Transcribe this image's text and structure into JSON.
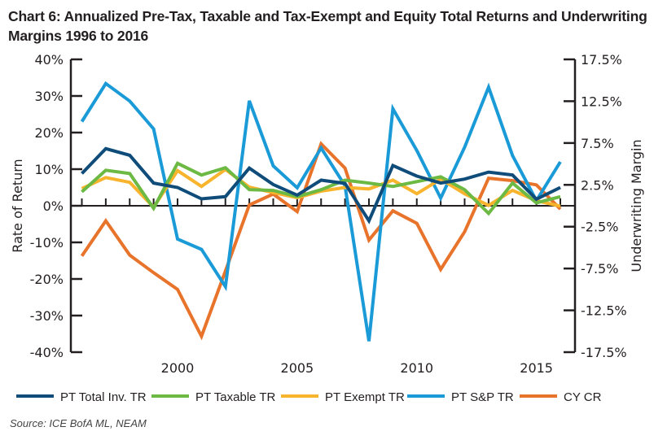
{
  "chart_data": {
    "type": "line",
    "title": "Chart 6: Annualized Pre-Tax, Taxable and Tax-Exempt and Equity Total Returns and Underwriting Margins 1996 to 2016",
    "ylabel": "Rate of Return",
    "y2label": "Underwriting Margin",
    "ylim": [
      -40,
      40
    ],
    "y2lim": [
      -17.5,
      17.5
    ],
    "yticks": [
      "40%",
      "30%",
      "20%",
      "10%",
      "0%",
      "-10%",
      "-20%",
      "-30%",
      "-40%"
    ],
    "y2ticks": [
      "17.5%",
      "12.5%",
      "7.5%",
      "2.5%",
      "-2.5%",
      "-7.5%",
      "-12.5%",
      "-17.5%"
    ],
    "xticklabels": [
      "2000",
      "2005",
      "2010",
      "2015"
    ],
    "x": [
      1996,
      1997,
      1998,
      1999,
      2000,
      2001,
      2002,
      2003,
      2004,
      2005,
      2006,
      2007,
      2008,
      2009,
      2010,
      2011,
      2012,
      2013,
      2014,
      2015,
      2016
    ],
    "legend_position": "bottom",
    "grid": false,
    "series": [
      {
        "name": "PT Total Inv. TR",
        "axis": "left",
        "color": "#0f4c7a",
        "values": [
          8.8,
          15.6,
          13.8,
          6.2,
          5.0,
          1.9,
          2.5,
          10.3,
          5.8,
          2.9,
          7.0,
          6.1,
          -4.1,
          11.0,
          8.1,
          6.2,
          7.3,
          9.2,
          8.4,
          1.8,
          5.0
        ]
      },
      {
        "name": "PT Taxable TR",
        "axis": "left",
        "color": "#6cb944",
        "values": [
          3.8,
          9.7,
          8.8,
          -0.7,
          11.6,
          8.4,
          10.4,
          4.4,
          4.2,
          2.5,
          4.4,
          7.0,
          6.2,
          5.3,
          6.6,
          7.9,
          4.4,
          -2.1,
          6.2,
          0.8,
          2.5
        ]
      },
      {
        "name": "PT Exempt TR",
        "axis": "left",
        "color": "#f7b42c",
        "values": [
          4.7,
          7.7,
          6.4,
          -0.4,
          9.6,
          5.3,
          9.9,
          5.1,
          3.6,
          2.2,
          4.0,
          5.0,
          4.6,
          7.0,
          3.3,
          7.3,
          3.3,
          0.1,
          4.2,
          1.4,
          -0.1
        ]
      },
      {
        "name": "PT S&P TR",
        "axis": "left",
        "color": "#1a9bd7",
        "values": [
          23.0,
          33.4,
          28.6,
          21.0,
          -9.1,
          -11.9,
          -22.1,
          28.7,
          10.9,
          4.9,
          15.8,
          5.5,
          -37.0,
          26.5,
          15.1,
          2.1,
          16.0,
          32.4,
          13.7,
          1.4,
          12.0
        ]
      },
      {
        "name": "CY CR",
        "axis": "right",
        "color": "#e8732b",
        "values": [
          -6.0,
          -1.8,
          -5.9,
          -8.0,
          -10.0,
          -15.6,
          -7.8,
          0.1,
          1.4,
          -0.7,
          7.4,
          4.5,
          -4.1,
          -0.6,
          -2.1,
          -7.6,
          -3.1,
          3.3,
          3.0,
          2.5,
          -0.4
        ]
      }
    ]
  },
  "source": "Source: ICE BofA ML, NEAM"
}
